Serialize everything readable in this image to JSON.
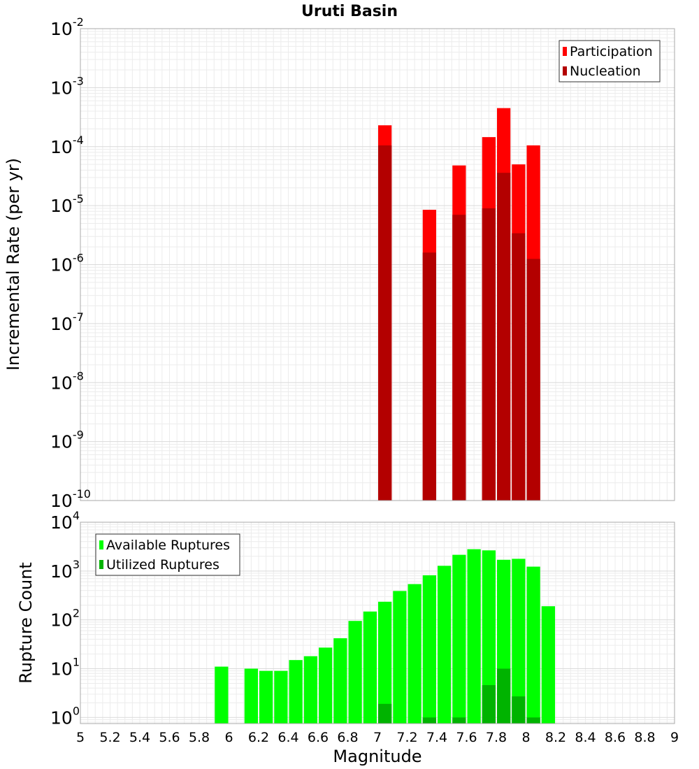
{
  "chart_data": [
    {
      "type": "bar",
      "title": "Uruti Basin",
      "xlabel": "",
      "ylabel": "Incremental Rate (per yr)",
      "yscale": "log",
      "ylim": [
        1e-10,
        0.01
      ],
      "xlim": [
        5,
        9
      ],
      "grid": true,
      "legend_position": "top-right",
      "y_ticks": [
        {
          "base": "10",
          "exp": "-2"
        },
        {
          "base": "10",
          "exp": "-3"
        },
        {
          "base": "10",
          "exp": "-4"
        },
        {
          "base": "10",
          "exp": "-5"
        },
        {
          "base": "10",
          "exp": "-6"
        },
        {
          "base": "10",
          "exp": "-7"
        },
        {
          "base": "10",
          "exp": "-8"
        },
        {
          "base": "10",
          "exp": "-9"
        },
        {
          "base": "10",
          "exp": "-10"
        }
      ],
      "bin_width": 0.1,
      "x": [
        7.05,
        7.35,
        7.55,
        7.75,
        7.85,
        7.95,
        8.05
      ],
      "series": [
        {
          "name": "Participation",
          "color": "#ff0000",
          "values": [
            0.00023,
            8.5e-06,
            4.8e-05,
            0.000145,
            0.00045,
            5e-05,
            0.000105
          ]
        },
        {
          "name": "Nucleation",
          "color": "#b30000",
          "values": [
            0.000105,
            1.6e-06,
            7e-06,
            9e-06,
            3.6e-05,
            3.4e-06,
            1.25e-06
          ]
        }
      ]
    },
    {
      "type": "bar",
      "title": "",
      "xlabel": "Magnitude",
      "ylabel": "Rupture Count",
      "yscale": "log",
      "ylim": [
        0.75,
        10000
      ],
      "xlim": [
        5,
        9
      ],
      "grid": true,
      "legend_position": "top-left",
      "x_ticks": [
        "5",
        "5.2",
        "5.4",
        "5.6",
        "5.8",
        "6",
        "6.2",
        "6.4",
        "6.6",
        "6.8",
        "7",
        "7.2",
        "7.4",
        "7.6",
        "7.8",
        "8",
        "8.2",
        "8.4",
        "8.6",
        "8.8",
        "9"
      ],
      "y_ticks": [
        {
          "base": "10",
          "exp": "4"
        },
        {
          "base": "10",
          "exp": "3"
        },
        {
          "base": "10",
          "exp": "2"
        },
        {
          "base": "10",
          "exp": "1"
        },
        {
          "base": "10",
          "exp": "0"
        }
      ],
      "bin_width": 0.1,
      "x": [
        5.95,
        6.15,
        6.25,
        6.35,
        6.45,
        6.55,
        6.65,
        6.75,
        6.85,
        6.95,
        7.05,
        7.15,
        7.25,
        7.35,
        7.45,
        7.55,
        7.65,
        7.75,
        7.85,
        7.95,
        8.05,
        8.15
      ],
      "series": [
        {
          "name": "Available Ruptures",
          "color": "#00ff00",
          "values": [
            11,
            10,
            9,
            9,
            15,
            18,
            27,
            42,
            95,
            148,
            235,
            390,
            540,
            820,
            1280,
            2150,
            2800,
            2650,
            1700,
            1780,
            1230,
            190
          ]
        },
        {
          "name": "Utilized Ruptures",
          "color": "#00b300",
          "values": [
            0,
            0,
            0,
            0,
            0,
            0,
            0,
            0,
            0,
            0,
            1.9,
            0,
            0,
            1.0,
            0,
            1.0,
            0,
            4.6,
            10,
            2.7,
            1.0,
            0
          ]
        }
      ]
    }
  ]
}
